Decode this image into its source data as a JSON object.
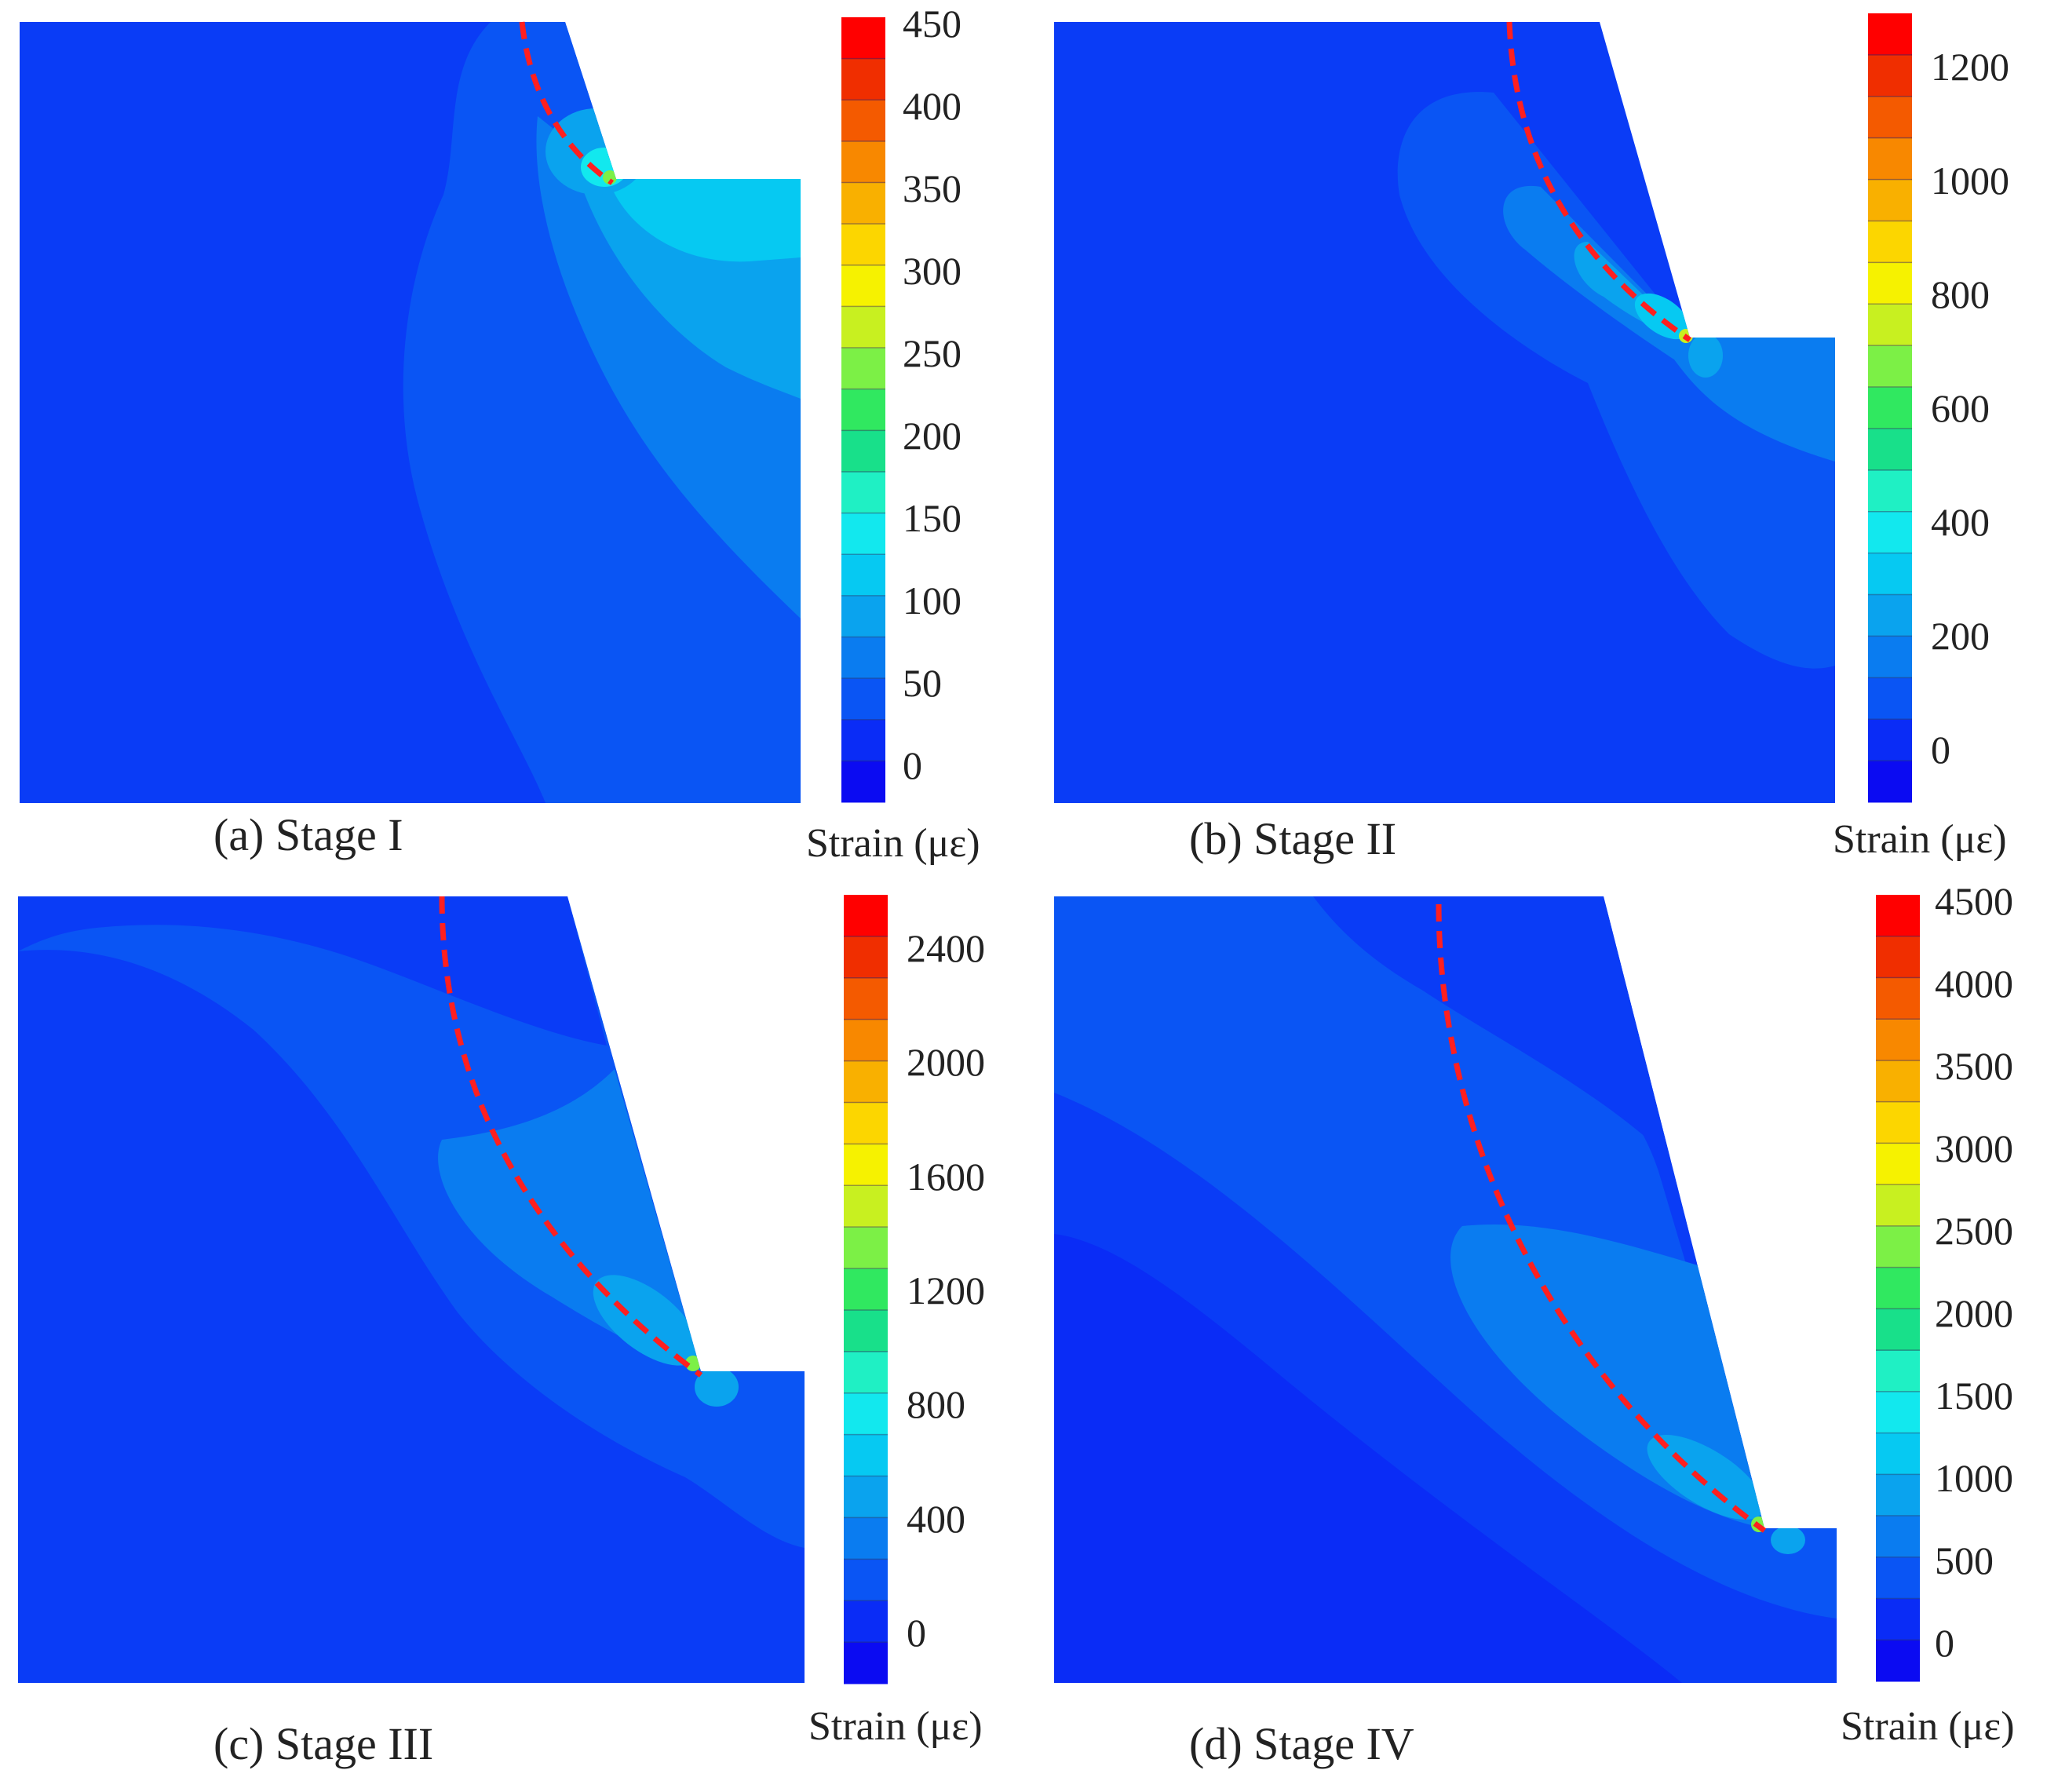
{
  "figure": {
    "colorbar_palette": [
      "#0b0bf2",
      "#0a2cf6",
      "#0a55f4",
      "#0a7cf0",
      "#0aa3ee",
      "#06c9f2",
      "#12e8ee",
      "#1ff0c4",
      "#18e08a",
      "#30e860",
      "#7cf046",
      "#c8f020",
      "#f6f200",
      "#fcd600",
      "#f9b000",
      "#f88800",
      "#f45a00",
      "#f02e00",
      "#ff0000"
    ],
    "slip_surface_color": "#ff1f1f",
    "panels": [
      {
        "id": "a",
        "caption": "(a) Stage I",
        "unit_label": "Strain (με)",
        "ticks": [
          "450",
          "400",
          "350",
          "300",
          "250",
          "200",
          "150",
          "100",
          "50",
          "0"
        ]
      },
      {
        "id": "b",
        "caption": "(b) Stage II",
        "unit_label": "Strain (με)",
        "ticks": [
          "1200",
          "1000",
          "800",
          "600",
          "400",
          "200",
          "0"
        ]
      },
      {
        "id": "c",
        "caption": "(c) Stage III",
        "unit_label": "Strain (με)",
        "ticks": [
          "2400",
          "2000",
          "1600",
          "1200",
          "800",
          "400",
          "0"
        ]
      },
      {
        "id": "d",
        "caption": "(d) Stage IV",
        "unit_label": "Strain (με)",
        "ticks": [
          "4500",
          "4000",
          "3500",
          "3000",
          "2500",
          "2000",
          "1500",
          "1000",
          "500",
          "0"
        ]
      }
    ]
  }
}
